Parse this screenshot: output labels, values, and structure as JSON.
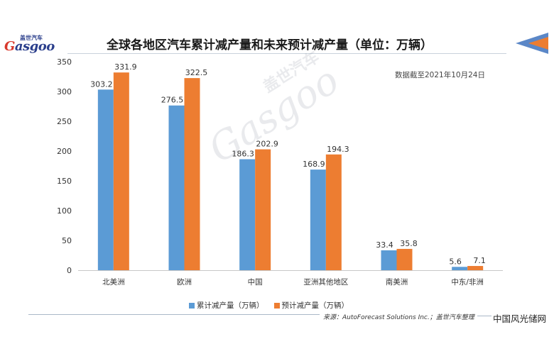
{
  "brand": {
    "cn": "盖世汽车",
    "en_first": "G",
    "en_rest": "asgoo"
  },
  "title": "全球各地区汽车累计减产量和未来预计减产量（单位：万辆）",
  "note": "数据截至2021年10月24日",
  "source": "来源：AutoForecast Solutions Inc.；盖世汽车整理",
  "corner_watermark": "中国风光储网",
  "watermark": {
    "cn": "盖世汽车",
    "en": "Gasgoo"
  },
  "colors": {
    "cumulative": "#5b9bd5",
    "forecast": "#ed7d31"
  },
  "chart_data": {
    "type": "bar",
    "categories": [
      "北美洲",
      "欧洲",
      "中国",
      "亚洲其他地区",
      "南美洲",
      "中东/非洲"
    ],
    "series": [
      {
        "name": "累计减产量（万辆）",
        "values": [
          303.2,
          276.5,
          186.3,
          168.9,
          33.4,
          5.6
        ]
      },
      {
        "name": "预计减产量（万辆）",
        "values": [
          331.9,
          322.5,
          202.9,
          194.3,
          35.8,
          7.1
        ]
      }
    ],
    "yticks": [
      0,
      50,
      100,
      150,
      200,
      250,
      300,
      350
    ],
    "ylim": [
      0,
      350
    ],
    "legend": "bottom"
  }
}
